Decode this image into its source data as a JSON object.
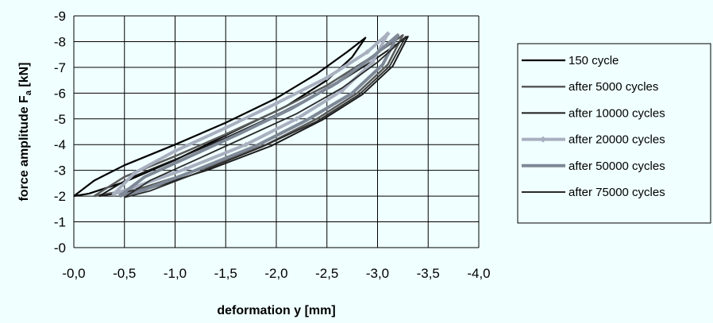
{
  "chart_data": {
    "type": "line",
    "title": "",
    "xlabel": "deformation y [mm]",
    "ylabel_main": "force amplitude F",
    "ylabel_sub": "a",
    "ylabel_unit": " [kN]",
    "xlim": [
      0,
      -4
    ],
    "ylim": [
      0,
      -9
    ],
    "xticks": [
      0,
      -0.5,
      -1,
      -1.5,
      -2,
      -2.5,
      -3,
      -3.5,
      -4
    ],
    "xtick_labels": [
      "-0,0",
      "-0,5",
      "-1,0",
      "-1,5",
      "-2,0",
      "-2,5",
      "-3,0",
      "-3,5",
      "-4,0"
    ],
    "yticks": [
      0,
      -1,
      -2,
      -3,
      -4,
      -5,
      -6,
      -7,
      -8,
      -9
    ],
    "ytick_labels": [
      "-0",
      "-1",
      "-2",
      "-3",
      "-4",
      "-5",
      "-6",
      "-7",
      "-8",
      "-9"
    ],
    "grid": true,
    "legend_position": "right",
    "series": [
      {
        "name": "150 cycle",
        "color": "#000000",
        "width": 2.2,
        "marker": "none",
        "upper": [
          [
            0,
            -2.0
          ],
          [
            -0.2,
            -2.6
          ],
          [
            -0.5,
            -3.2
          ],
          [
            -1.0,
            -4.0
          ],
          [
            -1.5,
            -4.85
          ],
          [
            -2.0,
            -5.8
          ],
          [
            -2.4,
            -6.75
          ],
          [
            -2.7,
            -7.6
          ],
          [
            -2.88,
            -8.15
          ]
        ],
        "lower": [
          [
            -2.88,
            -8.15
          ],
          [
            -2.75,
            -7.4
          ],
          [
            -2.5,
            -6.5
          ],
          [
            -2.1,
            -5.5
          ],
          [
            -1.6,
            -4.55
          ],
          [
            -1.0,
            -3.4
          ],
          [
            -0.5,
            -2.55
          ],
          [
            -0.15,
            -2.1
          ],
          [
            0,
            -2.0
          ]
        ]
      },
      {
        "name": "after 5000 cycles",
        "color": "#5a5a5a",
        "width": 2.5,
        "marker": "none",
        "upper": [
          [
            -0.2,
            -2.0
          ],
          [
            -0.5,
            -2.75
          ],
          [
            -1.0,
            -3.55
          ],
          [
            -1.5,
            -4.4
          ],
          [
            -2.0,
            -5.3
          ],
          [
            -2.5,
            -6.3
          ],
          [
            -2.9,
            -7.3
          ],
          [
            -3.25,
            -8.25
          ]
        ],
        "lower": [
          [
            -3.25,
            -8.25
          ],
          [
            -3.1,
            -7.1
          ],
          [
            -2.8,
            -6.0
          ],
          [
            -2.4,
            -5.0
          ],
          [
            -1.9,
            -4.0
          ],
          [
            -1.3,
            -3.1
          ],
          [
            -0.7,
            -2.35
          ],
          [
            -0.2,
            -2.0
          ]
        ]
      },
      {
        "name": "after 10000 cycles",
        "color": "#1a1a1a",
        "width": 2.0,
        "marker": "none",
        "upper": [
          [
            -0.25,
            -2.0
          ],
          [
            -0.55,
            -2.7
          ],
          [
            -1.05,
            -3.5
          ],
          [
            -1.55,
            -4.35
          ],
          [
            -2.05,
            -5.25
          ],
          [
            -2.55,
            -6.25
          ],
          [
            -2.95,
            -7.25
          ],
          [
            -3.3,
            -8.2
          ]
        ],
        "lower": [
          [
            -3.3,
            -8.2
          ],
          [
            -3.15,
            -7.05
          ],
          [
            -2.85,
            -5.95
          ],
          [
            -2.45,
            -4.95
          ],
          [
            -1.95,
            -3.95
          ],
          [
            -1.35,
            -3.05
          ],
          [
            -0.75,
            -2.3
          ],
          [
            -0.25,
            -2.0
          ]
        ]
      },
      {
        "name": "after 20000 cycles",
        "color": "#a8b0c0",
        "width": 4.0,
        "marker": "diamond",
        "upper": [
          [
            -0.4,
            -2.1
          ],
          [
            -0.6,
            -2.9
          ],
          [
            -1.0,
            -3.75
          ],
          [
            -1.5,
            -4.65
          ],
          [
            -2.0,
            -5.6
          ],
          [
            -2.5,
            -6.6
          ],
          [
            -2.9,
            -7.6
          ],
          [
            -3.1,
            -8.3
          ]
        ],
        "lower": [
          [
            -3.1,
            -8.3
          ],
          [
            -2.95,
            -7.2
          ],
          [
            -2.65,
            -6.1
          ],
          [
            -2.2,
            -5.0
          ],
          [
            -1.7,
            -4.0
          ],
          [
            -1.1,
            -3.05
          ],
          [
            -0.6,
            -2.35
          ],
          [
            -0.4,
            -2.1
          ]
        ]
      },
      {
        "name": "after 50000 cycles",
        "color": "#7e8896",
        "width": 4.0,
        "marker": "none",
        "upper": [
          [
            -0.45,
            -2.0
          ],
          [
            -0.7,
            -2.75
          ],
          [
            -1.15,
            -3.55
          ],
          [
            -1.65,
            -4.45
          ],
          [
            -2.15,
            -5.4
          ],
          [
            -2.6,
            -6.4
          ],
          [
            -2.95,
            -7.4
          ],
          [
            -3.2,
            -8.25
          ]
        ],
        "lower": [
          [
            -3.2,
            -8.25
          ],
          [
            -3.05,
            -7.1
          ],
          [
            -2.75,
            -6.0
          ],
          [
            -2.3,
            -4.95
          ],
          [
            -1.8,
            -3.95
          ],
          [
            -1.2,
            -3.0
          ],
          [
            -0.7,
            -2.25
          ],
          [
            -0.45,
            -2.0
          ]
        ]
      },
      {
        "name": "after 75000 cycles",
        "color": "#2a2a2a",
        "width": 1.8,
        "marker": "none",
        "upper": [
          [
            -0.5,
            -1.95
          ],
          [
            -0.75,
            -2.6
          ],
          [
            -1.2,
            -3.4
          ],
          [
            -1.7,
            -4.3
          ],
          [
            -2.2,
            -5.2
          ],
          [
            -2.65,
            -6.2
          ],
          [
            -3.0,
            -7.2
          ],
          [
            -3.28,
            -8.2
          ]
        ],
        "lower": [
          [
            -3.28,
            -8.2
          ],
          [
            -3.12,
            -7.05
          ],
          [
            -2.82,
            -5.95
          ],
          [
            -2.4,
            -4.9
          ],
          [
            -1.85,
            -3.9
          ],
          [
            -1.25,
            -2.95
          ],
          [
            -0.75,
            -2.2
          ],
          [
            -0.5,
            -1.95
          ]
        ]
      }
    ]
  }
}
